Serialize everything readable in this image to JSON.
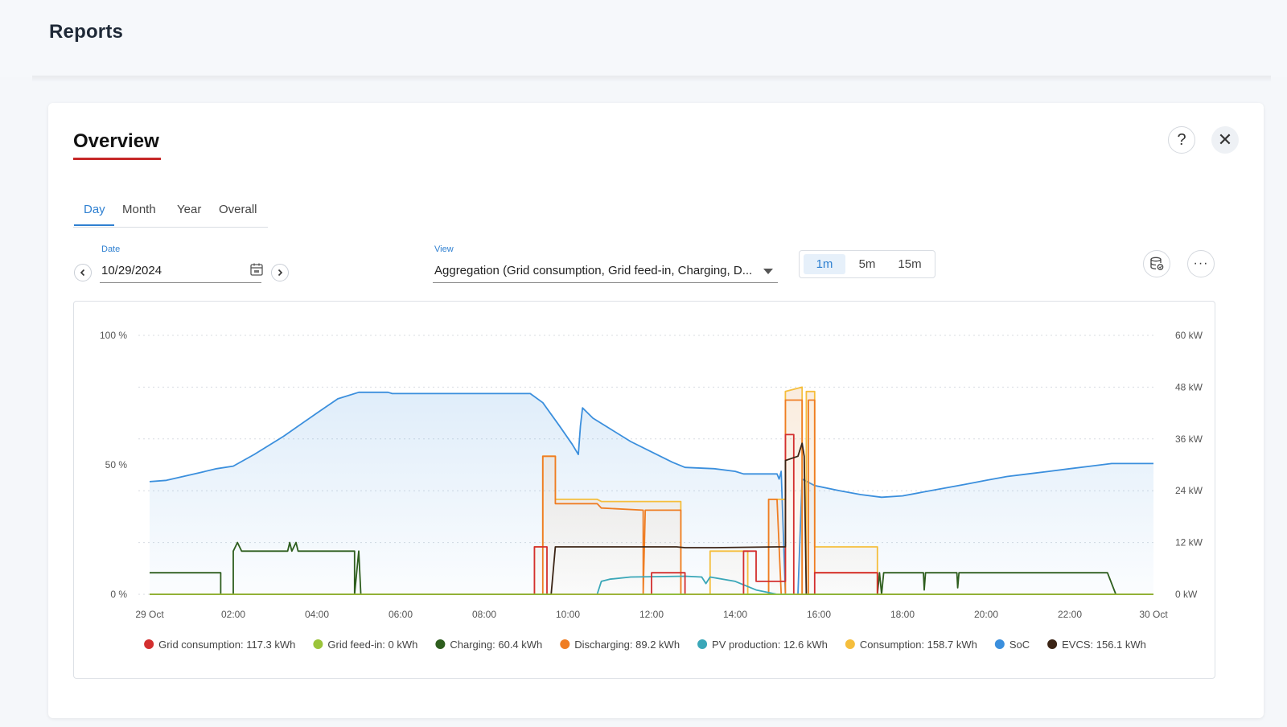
{
  "page": {
    "title": "Reports"
  },
  "card": {
    "title": "Overview",
    "help_label": "?",
    "close_label": "✕"
  },
  "tabs": [
    {
      "label": "Day",
      "active": true
    },
    {
      "label": "Month",
      "active": false
    },
    {
      "label": "Year",
      "active": false
    },
    {
      "label": "Overall",
      "active": false
    }
  ],
  "date_field": {
    "label": "Date",
    "value": "10/29/2024"
  },
  "view_field": {
    "label": "View",
    "value": "Aggregation (Grid consumption, Grid feed-in, Charging, D..."
  },
  "intervals": [
    {
      "label": "1m",
      "active": true
    },
    {
      "label": "5m",
      "active": false
    },
    {
      "label": "15m",
      "active": false
    }
  ],
  "toolbar": {
    "db_icon": "database-icon",
    "more_label": "···"
  },
  "chart_data": {
    "type": "line",
    "title": "",
    "x_ticks": [
      "29 Oct",
      "02:00",
      "04:00",
      "06:00",
      "08:00",
      "10:00",
      "12:00",
      "14:00",
      "16:00",
      "18:00",
      "20:00",
      "22:00",
      "30 Oct"
    ],
    "y_left_ticks": [
      "0 %",
      "50 %",
      "100 %"
    ],
    "y_left_range": [
      0,
      100
    ],
    "y_right_ticks": [
      "0 kW",
      "12 kW",
      "24 kW",
      "36 kW",
      "48 kW",
      "60 kW"
    ],
    "y_right_range": [
      0,
      60
    ],
    "grid": true,
    "legend_position": "bottom",
    "series": [
      {
        "name": "Grid consumption: 117.3 kWh",
        "color": "#d32f2f",
        "axis": "right",
        "points": [
          [
            0,
            0
          ],
          [
            9.2,
            0
          ],
          [
            9.2,
            11
          ],
          [
            9.5,
            11
          ],
          [
            9.5,
            0
          ],
          [
            12,
            0
          ],
          [
            12,
            5
          ],
          [
            12.8,
            5
          ],
          [
            12.8,
            0
          ],
          [
            14.2,
            0
          ],
          [
            14.2,
            10
          ],
          [
            14.5,
            10
          ],
          [
            14.5,
            3
          ],
          [
            15.2,
            3
          ],
          [
            15.2,
            37
          ],
          [
            15.4,
            37
          ],
          [
            15.4,
            0
          ],
          [
            15.9,
            0
          ],
          [
            15.9,
            5
          ],
          [
            17.4,
            5
          ],
          [
            17.4,
            0
          ],
          [
            24,
            0
          ]
        ]
      },
      {
        "name": "Grid feed-in: 0 kWh",
        "color": "#9bc43a",
        "axis": "right",
        "points": [
          [
            0,
            0
          ],
          [
            24,
            0
          ]
        ]
      },
      {
        "name": "Charging: 60.4 kWh",
        "color": "#2e5e1e",
        "axis": "right",
        "points": [
          [
            0,
            5
          ],
          [
            1.7,
            5
          ],
          [
            1.7,
            0
          ],
          [
            2,
            0
          ],
          [
            2,
            10
          ],
          [
            2.1,
            12
          ],
          [
            2.2,
            10
          ],
          [
            3.3,
            10
          ],
          [
            3.35,
            12
          ],
          [
            3.4,
            10
          ],
          [
            3.5,
            12
          ],
          [
            3.55,
            10
          ],
          [
            4.9,
            10
          ],
          [
            4.9,
            0
          ],
          [
            5,
            10
          ],
          [
            5.05,
            0
          ],
          [
            17.4,
            0
          ],
          [
            17.45,
            5
          ],
          [
            17.5,
            0
          ],
          [
            17.55,
            5
          ],
          [
            18.5,
            5
          ],
          [
            18.52,
            1
          ],
          [
            18.55,
            5
          ],
          [
            19.3,
            5
          ],
          [
            19.32,
            1.5
          ],
          [
            19.35,
            5
          ],
          [
            22.9,
            5
          ],
          [
            23.1,
            0
          ],
          [
            24,
            0
          ]
        ]
      },
      {
        "name": "Discharging: 89.2 kWh",
        "color": "#ef7d23",
        "axis": "right",
        "points": [
          [
            0,
            0
          ],
          [
            9.4,
            0
          ],
          [
            9.4,
            32
          ],
          [
            9.7,
            32
          ],
          [
            9.7,
            21
          ],
          [
            10.7,
            21
          ],
          [
            10.8,
            20
          ],
          [
            11.8,
            19.5
          ],
          [
            11.8,
            0
          ],
          [
            11.85,
            19.5
          ],
          [
            12.7,
            19.5
          ],
          [
            12.7,
            0
          ],
          [
            14.8,
            0
          ],
          [
            14.8,
            22
          ],
          [
            15,
            22
          ],
          [
            15.1,
            0
          ],
          [
            15.2,
            0
          ],
          [
            15.2,
            45
          ],
          [
            15.6,
            45
          ],
          [
            15.6,
            0
          ],
          [
            15.75,
            0
          ],
          [
            15.75,
            45
          ],
          [
            15.9,
            45
          ],
          [
            15.9,
            5
          ],
          [
            17.4,
            5
          ],
          [
            17.4,
            0
          ],
          [
            24,
            0
          ]
        ]
      },
      {
        "name": "PV production: 12.6 kWh",
        "color": "#3aa7b8",
        "axis": "right",
        "points": [
          [
            0,
            0
          ],
          [
            10.7,
            0
          ],
          [
            10.8,
            3
          ],
          [
            11,
            3.5
          ],
          [
            11.5,
            4
          ],
          [
            12.8,
            4.2
          ],
          [
            13.2,
            4
          ],
          [
            13.3,
            2.5
          ],
          [
            13.4,
            4
          ],
          [
            14,
            3
          ],
          [
            14.5,
            1
          ],
          [
            15,
            0
          ],
          [
            24,
            0
          ]
        ]
      },
      {
        "name": "Consumption: 158.7 kWh",
        "color": "#f5be3c",
        "axis": "right",
        "points": [
          [
            0,
            0
          ],
          [
            9.2,
            0
          ],
          [
            9.2,
            11
          ],
          [
            9.4,
            11
          ],
          [
            9.4,
            32
          ],
          [
            9.7,
            32
          ],
          [
            9.7,
            22
          ],
          [
            10.7,
            22
          ],
          [
            10.8,
            21.5
          ],
          [
            12.7,
            21.5
          ],
          [
            12.7,
            0
          ],
          [
            13.4,
            0
          ],
          [
            13.4,
            10
          ],
          [
            14.3,
            10
          ],
          [
            14.3,
            0
          ],
          [
            14.8,
            0
          ],
          [
            14.8,
            22
          ],
          [
            15.2,
            22
          ],
          [
            15.2,
            47
          ],
          [
            15.6,
            48
          ],
          [
            15.6,
            0
          ],
          [
            15.7,
            0
          ],
          [
            15.7,
            47
          ],
          [
            15.9,
            47
          ],
          [
            15.9,
            11
          ],
          [
            17.4,
            11
          ],
          [
            17.4,
            0
          ],
          [
            24,
            0
          ]
        ]
      },
      {
        "name": "SoC",
        "color": "#3b8fdd",
        "axis": "left",
        "fill": true,
        "points": [
          [
            0,
            43.5
          ],
          [
            0.4,
            44
          ],
          [
            0.8,
            45.5
          ],
          [
            1.2,
            47
          ],
          [
            1.6,
            48.5
          ],
          [
            2,
            49.5
          ],
          [
            2.5,
            54
          ],
          [
            3.2,
            61
          ],
          [
            4,
            70
          ],
          [
            4.5,
            75.5
          ],
          [
            5,
            78
          ],
          [
            5.7,
            78
          ],
          [
            5.8,
            77.5
          ],
          [
            9.1,
            77.5
          ],
          [
            9.4,
            74
          ],
          [
            9.8,
            65
          ],
          [
            10.1,
            58
          ],
          [
            10.25,
            54
          ],
          [
            10.3,
            65
          ],
          [
            10.35,
            72
          ],
          [
            10.6,
            68
          ],
          [
            11,
            64
          ],
          [
            11.5,
            59
          ],
          [
            12,
            55
          ],
          [
            12.5,
            51
          ],
          [
            12.8,
            49
          ],
          [
            13.5,
            48.5
          ],
          [
            14,
            47.5
          ],
          [
            14.2,
            46.5
          ],
          [
            15,
            46.5
          ],
          [
            15.05,
            44.5
          ],
          [
            15.1,
            47.5
          ],
          [
            15.2,
            0
          ],
          [
            15.5,
            0
          ],
          [
            15.6,
            44.5
          ],
          [
            15.9,
            42
          ],
          [
            16.5,
            40
          ],
          [
            17,
            38.5
          ],
          [
            17.5,
            37.5
          ],
          [
            18,
            38
          ],
          [
            18.5,
            39.5
          ],
          [
            19,
            41
          ],
          [
            19.5,
            42.5
          ],
          [
            20,
            44
          ],
          [
            20.5,
            45.5
          ],
          [
            21,
            46.5
          ],
          [
            21.5,
            47.5
          ],
          [
            22,
            48.5
          ],
          [
            22.5,
            49.5
          ],
          [
            23,
            50.5
          ],
          [
            24,
            50.5
          ]
        ]
      },
      {
        "name": "EVCS: 156.1 kWh",
        "color": "#3b2415",
        "axis": "right",
        "points": [
          [
            0,
            0
          ],
          [
            9.6,
            0
          ],
          [
            9.7,
            11
          ],
          [
            12.6,
            11
          ],
          [
            12.8,
            10.8
          ],
          [
            13.5,
            10.8
          ],
          [
            15,
            11
          ],
          [
            15.2,
            11
          ],
          [
            15.2,
            31
          ],
          [
            15.5,
            32
          ],
          [
            15.6,
            35
          ],
          [
            15.65,
            32
          ],
          [
            15.7,
            0
          ],
          [
            24,
            0
          ]
        ]
      }
    ]
  }
}
